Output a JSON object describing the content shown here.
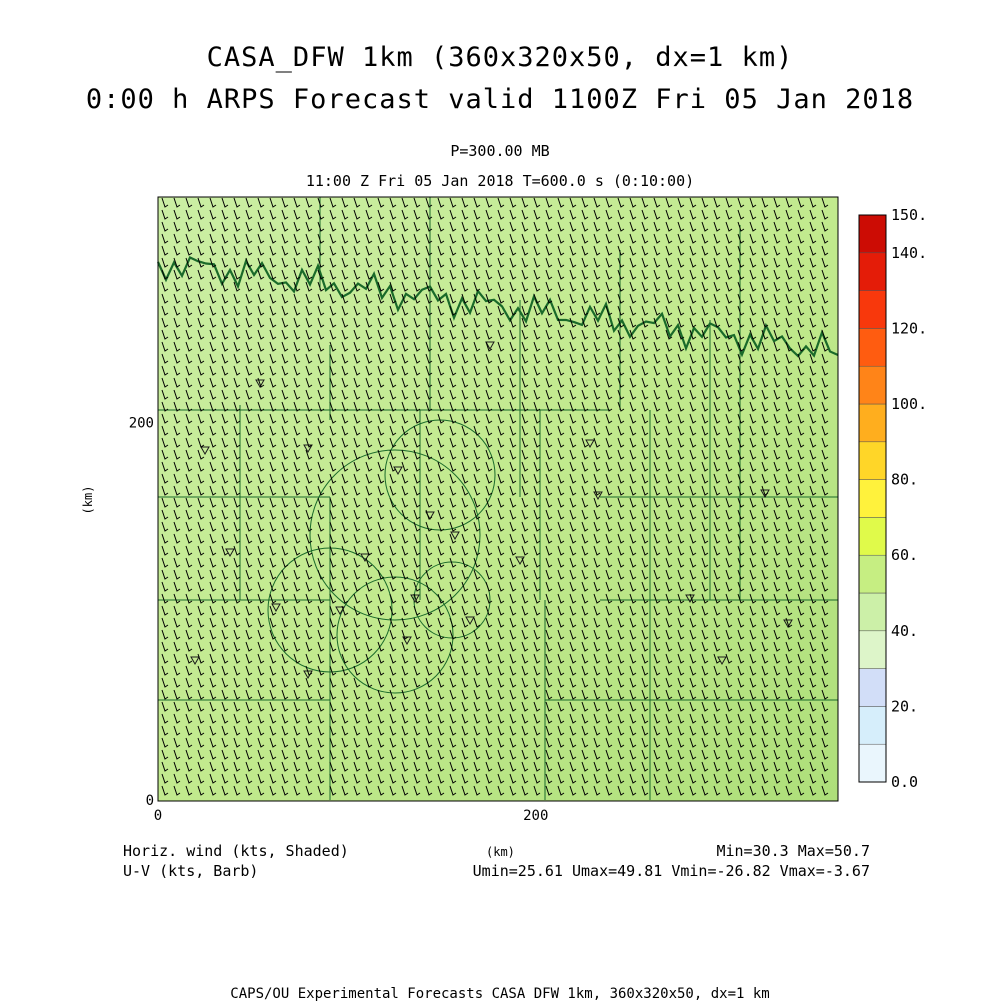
{
  "header": {
    "title_line1": "CASA_DFW 1km (360x320x50, dx=1 km)",
    "title_line2": "0:00 h ARPS Forecast valid 1100Z Fri 05 Jan 2018",
    "level_label": "P=300.00 MB",
    "time_label": "11:00 Z Fri 05 Jan 2018    T=600.0 s (0:10:00)"
  },
  "footer": {
    "field_label": "Horiz. wind (kts, Shaded)",
    "vector_label": "U-V (kts, Barb)",
    "xunit": "(km)",
    "minmax": "Min=30.3 Max=50.7",
    "uv_minmax": "Umin=25.61 Umax=49.81 Vmin=-26.82 Vmax=-3.67",
    "credit": "CAPS/OU Experimental Forecasts  CASA DFW 1km, 360x320x50, dx=1 km"
  },
  "chart_data": {
    "type": "heatmap",
    "title": "CASA_DFW 1km (360x320x50, dx=1 km)",
    "subtitle": "0:00 h ARPS Forecast valid 1100Z Fri 05 Jan 2018",
    "xlabel": "(km)",
    "ylabel": "(km)",
    "xlim": [
      0,
      360
    ],
    "ylim": [
      0,
      320
    ],
    "x_ticks": [
      "0",
      "200"
    ],
    "y_ticks": [
      "0",
      "200"
    ],
    "field": "Horizontal wind speed (kts)",
    "field_min": 30.3,
    "field_max": 50.7,
    "u_min": 25.61,
    "u_max": 49.81,
    "v_min": -26.82,
    "v_max": -3.67,
    "colorbar": {
      "labels": [
        "0.0",
        "20.",
        "40.",
        "60.",
        "80.",
        "100.",
        "120.",
        "140.",
        "150."
      ],
      "levels": [
        0,
        10,
        20,
        30,
        40,
        50,
        60,
        70,
        80,
        90,
        100,
        110,
        120,
        130,
        140,
        150
      ],
      "colors": [
        "#eaf6fd",
        "#d6eefb",
        "#d2def8",
        "#ddf5c9",
        "#ccf0a8",
        "#c6ee82",
        "#e0fa4a",
        "#fff23c",
        "#ffd628",
        "#ffae1e",
        "#ff8418",
        "#ff5c10",
        "#f8380c",
        "#e41c08",
        "#cc0c04",
        "#b00000"
      ]
    },
    "wind_barbs": "U-V (kts, Barb)",
    "colors": {
      "field_light": "#cbeea4",
      "field_mid": "#c2ea8e",
      "field_dark": "#aedf7a",
      "map_lines": "#1a6a2a",
      "barbs": "#000000"
    }
  }
}
